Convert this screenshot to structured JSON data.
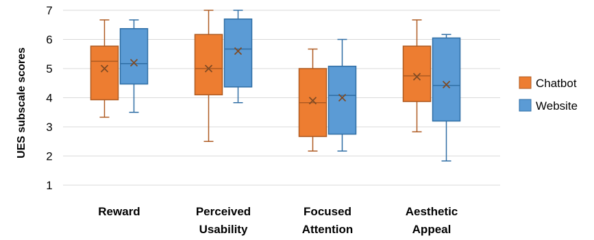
{
  "chart_data": {
    "type": "box",
    "title": "",
    "xlabel": "",
    "ylabel": "UES subscale scores",
    "ylim": [
      1,
      7
    ],
    "yticks": [
      "1",
      "2",
      "3",
      "4",
      "5",
      "6",
      "7"
    ],
    "grid": true,
    "legend_position": "right",
    "categories": [
      [
        "Reward"
      ],
      [
        "Perceived",
        "Usability"
      ],
      [
        "Focused",
        "Attention"
      ],
      [
        "Aesthetic",
        "Appeal"
      ]
    ],
    "series": [
      {
        "name": "Chatbot",
        "color": "#ED7D31",
        "stroke": "#AE5A21",
        "boxes": [
          {
            "min": 3.33,
            "q1": 3.93,
            "median": 5.25,
            "q3": 5.77,
            "max": 6.67,
            "mean": 5.0
          },
          {
            "min": 2.5,
            "q1": 4.1,
            "median": 5.0,
            "q3": 6.17,
            "max": 7.0,
            "mean": 5.0
          },
          {
            "min": 2.17,
            "q1": 2.67,
            "median": 3.83,
            "q3": 5.0,
            "max": 5.67,
            "mean": 3.9
          },
          {
            "min": 2.83,
            "q1": 3.87,
            "median": 4.75,
            "q3": 5.77,
            "max": 6.67,
            "mean": 4.72
          }
        ]
      },
      {
        "name": "Website",
        "color": "#5B9BD5",
        "stroke": "#2E6DA4",
        "boxes": [
          {
            "min": 3.5,
            "q1": 4.47,
            "median": 5.17,
            "q3": 6.37,
            "max": 6.67,
            "mean": 5.2
          },
          {
            "min": 3.83,
            "q1": 4.37,
            "median": 5.67,
            "q3": 6.7,
            "max": 7.0,
            "mean": 5.6
          },
          {
            "min": 2.17,
            "q1": 2.75,
            "median": 4.08,
            "q3": 5.08,
            "max": 6.0,
            "mean": 4.0
          },
          {
            "min": 1.83,
            "q1": 3.2,
            "median": 4.42,
            "q3": 6.05,
            "max": 6.17,
            "mean": 4.45
          }
        ]
      }
    ]
  }
}
